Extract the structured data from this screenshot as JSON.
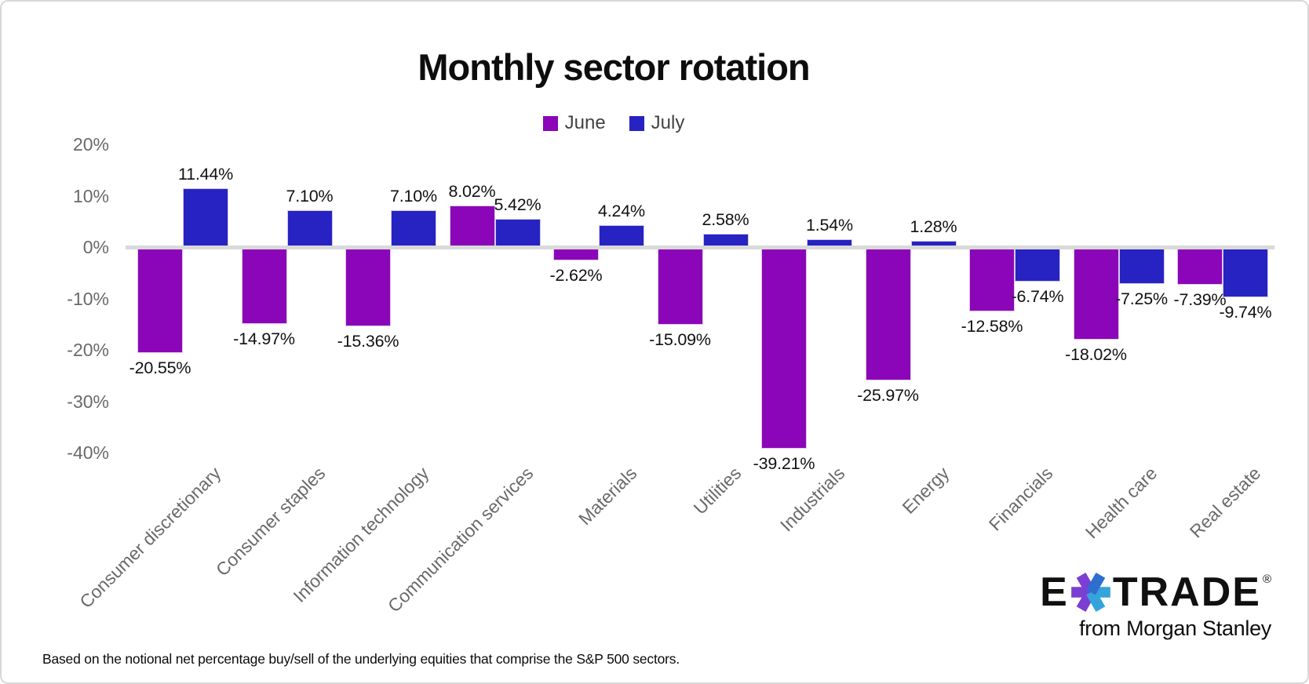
{
  "title": "Monthly sector rotation",
  "chart_data": {
    "type": "bar",
    "title": "Monthly sector rotation",
    "categories": [
      "Consumer discretionary",
      "Consumer staples",
      "Information technology",
      "Communication services",
      "Materials",
      "Utilities",
      "Industrials",
      "Energy",
      "Financials",
      "Health care",
      "Real estate"
    ],
    "series": [
      {
        "name": "June",
        "color": "#8A06B8",
        "edge_color": "#e3c6f0",
        "values": [
          -20.55,
          -14.97,
          -15.36,
          8.02,
          -2.62,
          -15.09,
          -39.21,
          -25.97,
          -12.58,
          -18.02,
          -7.39
        ]
      },
      {
        "name": "July",
        "color": "#2723C2",
        "edge_color": "#cbcaf0",
        "values": [
          11.44,
          7.1,
          7.1,
          5.42,
          4.24,
          2.58,
          1.54,
          1.28,
          -6.74,
          -7.25,
          -9.74
        ]
      }
    ],
    "y_axis": {
      "tick_labels": [
        "20%",
        "10%",
        "0%",
        "-10%",
        "-20%",
        "-30%",
        "-40%"
      ],
      "tick_values": [
        20,
        10,
        0,
        -10,
        -20,
        -30,
        -40
      ]
    },
    "ylim": [
      -45,
      25
    ],
    "grid": false,
    "legend_position": "top-center",
    "value_labels": true,
    "value_label_suffix": "%",
    "zero_line_color": "#d9d9d9",
    "axis_text_color": "#6a6a6a",
    "value_label_color": "#111111"
  },
  "footnote": "Based on the notional net percentage buy/sell of the underlying equities that comprise the S&P 500 sectors.",
  "logo": {
    "brand_left": "E",
    "brand_right": "TRADE",
    "registered": "®",
    "tagline": "from Morgan Stanley",
    "star_colors": {
      "purple": "#7B3FD3",
      "blue": "#2E6ED0",
      "cyan": "#35A3DC"
    }
  }
}
